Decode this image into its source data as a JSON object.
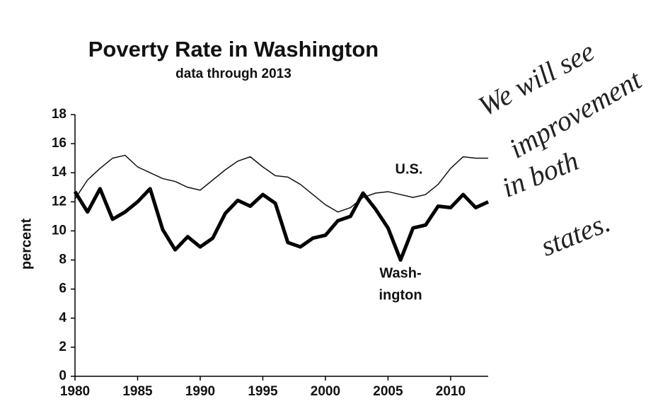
{
  "chart_data": {
    "type": "line",
    "title": "Poverty Rate in Washington",
    "subtitle": "data through 2013",
    "y_label": "percent",
    "x": [
      1980,
      1981,
      1982,
      1983,
      1984,
      1985,
      1986,
      1987,
      1988,
      1989,
      1990,
      1991,
      1992,
      1993,
      1994,
      1995,
      1996,
      1997,
      1998,
      1999,
      2000,
      2001,
      2002,
      2003,
      2004,
      2005,
      2006,
      2007,
      2008,
      2009,
      2010,
      2011,
      2012,
      2013
    ],
    "series": [
      {
        "name": "U.S.",
        "color": "#111111",
        "width": 1.5,
        "values": [
          12.2,
          13.5,
          14.3,
          15.0,
          15.2,
          14.4,
          14.0,
          13.6,
          13.4,
          13.0,
          12.8,
          13.5,
          14.2,
          14.8,
          15.1,
          14.4,
          13.8,
          13.7,
          13.2,
          12.5,
          11.8,
          11.3,
          11.6,
          12.3,
          12.6,
          12.7,
          12.5,
          12.3,
          12.5,
          13.2,
          14.3,
          15.1,
          15.0,
          15.0
        ]
      },
      {
        "name": "Wash-ington",
        "label_lines": [
          "Wash-",
          "ington"
        ],
        "color": "#000000",
        "width": 5,
        "values": [
          12.7,
          11.3,
          12.9,
          10.8,
          11.3,
          12.0,
          12.9,
          10.1,
          8.7,
          9.6,
          8.9,
          9.5,
          11.2,
          12.1,
          11.7,
          12.5,
          11.9,
          9.2,
          8.9,
          9.5,
          9.7,
          10.7,
          11.0,
          12.6,
          11.5,
          10.2,
          8.0,
          10.2,
          10.4,
          11.7,
          11.6,
          12.5,
          11.6,
          12.0
        ]
      }
    ],
    "xlim": [
      1980,
      2013
    ],
    "xticks": [
      1980,
      1985,
      1990,
      1995,
      2000,
      2005,
      2010
    ],
    "ylim": [
      0,
      18
    ],
    "yticks": [
      0,
      2,
      4,
      6,
      8,
      10,
      12,
      14,
      16,
      18
    ],
    "handwritten_note": [
      "We will see",
      "improvement",
      "in both",
      "states."
    ]
  }
}
